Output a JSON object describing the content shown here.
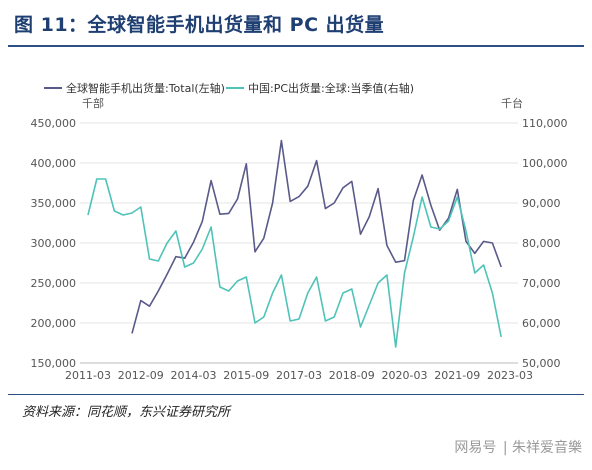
{
  "figure_title": "图 11：全球智能手机出货量和 PC 出货量",
  "source_note": "资料来源：同花顺，东兴证券研究所",
  "watermark": {
    "logo_text": "网易号",
    "separator": "|",
    "author": "朱祥爱音樂"
  },
  "colors": {
    "title": "#1f3f73",
    "rule": "#2d4f86",
    "smartphone_series": "#5a5a8a",
    "pc_series": "#4fc3b8",
    "axis_text": "#555555",
    "grid": "#e6e6e6"
  },
  "chart_data": {
    "type": "line",
    "left_unit": "千部",
    "right_unit": "千台",
    "left_ylim": [
      150000,
      450000
    ],
    "left_ticks": [
      "150,000",
      "200,000",
      "250,000",
      "300,000",
      "350,000",
      "400,000",
      "450,000"
    ],
    "right_ylim": [
      50000,
      110000
    ],
    "right_ticks": [
      "50,000",
      "60,000",
      "70,000",
      "80,000",
      "90,000",
      "100,000",
      "110,000"
    ],
    "x_ticks": [
      "2011-03",
      "2012-09",
      "2014-03",
      "2015-09",
      "2017-03",
      "2018-09",
      "2020-03",
      "2021-09",
      "2023-03"
    ],
    "legend_placement": "top-left",
    "grid": "horizontal",
    "series": [
      {
        "name": "全球智能手机出货量:Total(左轴)",
        "axis": "left",
        "x": [
          "2012-06",
          "2012-09",
          "2012-12",
          "2013-03",
          "2013-06",
          "2013-09",
          "2013-12",
          "2014-03",
          "2014-06",
          "2014-09",
          "2014-12",
          "2015-03",
          "2015-06",
          "2015-09",
          "2015-12",
          "2016-03",
          "2016-06",
          "2016-09",
          "2016-12",
          "2017-03",
          "2017-06",
          "2017-09",
          "2017-12",
          "2018-03",
          "2018-06",
          "2018-09",
          "2018-12",
          "2019-03",
          "2019-06",
          "2019-09",
          "2019-12",
          "2020-03",
          "2020-06",
          "2020-09",
          "2020-12",
          "2021-03",
          "2021-06",
          "2021-09",
          "2021-12",
          "2022-03",
          "2022-06",
          "2022-09",
          "2022-12",
          "2023-03"
        ],
        "y": [
          187000,
          228000,
          221000,
          240000,
          261000,
          283000,
          281000,
          301000,
          327000,
          378000,
          336000,
          337000,
          355000,
          399000,
          289000,
          306000,
          350000,
          428000,
          352000,
          358000,
          371000,
          403000,
          343000,
          350000,
          369000,
          377000,
          311000,
          333000,
          368000,
          297000,
          276000,
          278000,
          353000,
          385000,
          347000,
          316000,
          331000,
          367000,
          302000,
          287000,
          302000,
          300000,
          270000,
          null
        ]
      },
      {
        "name": "中国:PC出货量:全球:当季值(右轴)",
        "axis": "right",
        "x": [
          "2011-03",
          "2011-06",
          "2011-09",
          "2011-12",
          "2012-03",
          "2012-06",
          "2012-09",
          "2012-12",
          "2013-03",
          "2013-06",
          "2013-09",
          "2013-12",
          "2014-03",
          "2014-06",
          "2014-09",
          "2014-12",
          "2015-03",
          "2015-06",
          "2015-09",
          "2015-12",
          "2016-03",
          "2016-06",
          "2016-09",
          "2016-12",
          "2017-03",
          "2017-06",
          "2017-09",
          "2017-12",
          "2018-03",
          "2018-06",
          "2018-09",
          "2018-12",
          "2019-03",
          "2019-06",
          "2019-09",
          "2019-12",
          "2020-03",
          "2020-06",
          "2020-09",
          "2020-12",
          "2021-03",
          "2021-06",
          "2021-09",
          "2021-12",
          "2022-03",
          "2022-06",
          "2022-09",
          "2022-12",
          "2023-03"
        ],
        "y": [
          87000,
          96000,
          96000,
          88000,
          87000,
          87500,
          89000,
          76000,
          75500,
          80000,
          83000,
          74000,
          75000,
          78500,
          84000,
          69000,
          68000,
          70500,
          71500,
          60000,
          61500,
          67500,
          72000,
          60500,
          61000,
          67500,
          71500,
          60500,
          61500,
          67500,
          68500,
          59000,
          64500,
          70000,
          72000,
          54000,
          72500,
          81500,
          91500,
          84000,
          83500,
          85500,
          91500,
          83000,
          72500,
          74500,
          67500,
          56500,
          null
        ]
      }
    ]
  }
}
